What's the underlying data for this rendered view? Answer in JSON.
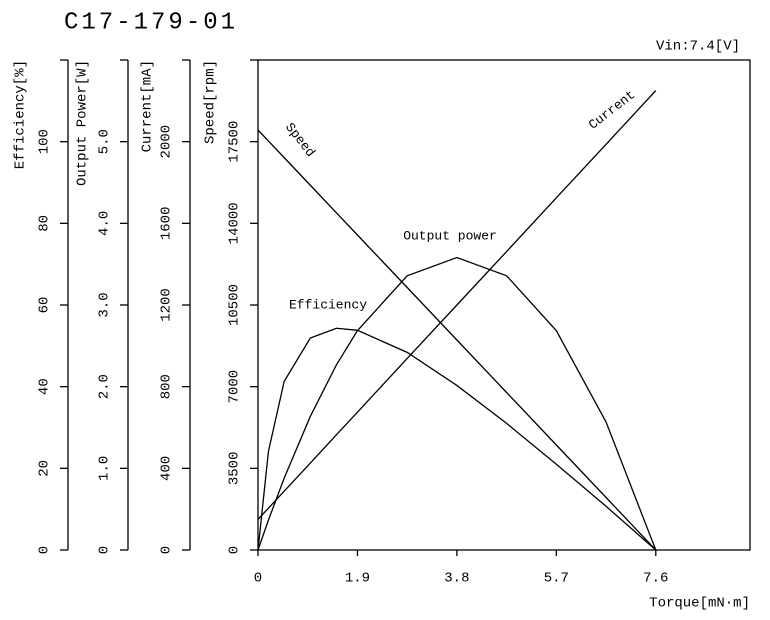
{
  "chart_data": {
    "type": "line",
    "title": "C17-179-01",
    "annotation": "Vin:7.4[V]",
    "x_label": "Torque[mN·m]",
    "x": [
      0,
      0.2,
      0.5,
      1.0,
      1.5,
      1.9,
      2.85,
      3.8,
      4.75,
      5.7,
      6.65,
      7.6
    ],
    "xlim": [
      0,
      9.4
    ],
    "xticks": [
      0,
      1.9,
      3.8,
      5.7,
      7.6
    ],
    "axes": [
      {
        "label": "Efficiency[%]",
        "ylim": [
          0,
          120
        ],
        "yticks": [
          0,
          20,
          40,
          60,
          80,
          100
        ]
      },
      {
        "label": "Output Power[W]",
        "ylim": [
          0,
          6.0
        ],
        "yticks": [
          0,
          {
            "value": 1.0,
            "label": "1.0"
          },
          {
            "value": 2.0,
            "label": "2.0"
          },
          {
            "value": 3.0,
            "label": "3.0"
          },
          {
            "value": 4.0,
            "label": "4.0"
          },
          {
            "value": 5.0,
            "label": "5.0"
          }
        ]
      },
      {
        "label": "Current[mA]",
        "ylim": [
          0,
          2400
        ],
        "yticks": [
          0,
          400,
          800,
          1200,
          1600,
          2000
        ]
      },
      {
        "label": "Speed[rpm]",
        "ylim": [
          0,
          21000
        ],
        "yticks": [
          0,
          3500,
          7000,
          10500,
          14000,
          17500
        ]
      }
    ],
    "series": [
      {
        "name": "Speed",
        "color": "#000000",
        "axis": 3,
        "values": [
          18000,
          17526,
          16816,
          15632,
          14447,
          13500,
          11250,
          9000,
          6750,
          4500,
          2250,
          0
        ]
      },
      {
        "name": "Current",
        "color": "#000000",
        "axis": 2,
        "values": [
          150,
          205,
          288,
          426,
          565,
          675,
          938,
          1200,
          1462,
          1725,
          1987,
          2250
        ]
      },
      {
        "name": "Output power",
        "color": "#000000",
        "axis": 1,
        "values": [
          0,
          0.367,
          0.88,
          1.637,
          2.269,
          2.686,
          3.358,
          3.581,
          3.358,
          2.686,
          1.567,
          0
        ]
      },
      {
        "name": "Efficiency",
        "color": "#000000",
        "axis": 0,
        "values": [
          0,
          24.2,
          41.3,
          51.9,
          54.3,
          53.8,
          48.4,
          40.3,
          31.0,
          21.0,
          10.7,
          0
        ]
      }
    ]
  }
}
